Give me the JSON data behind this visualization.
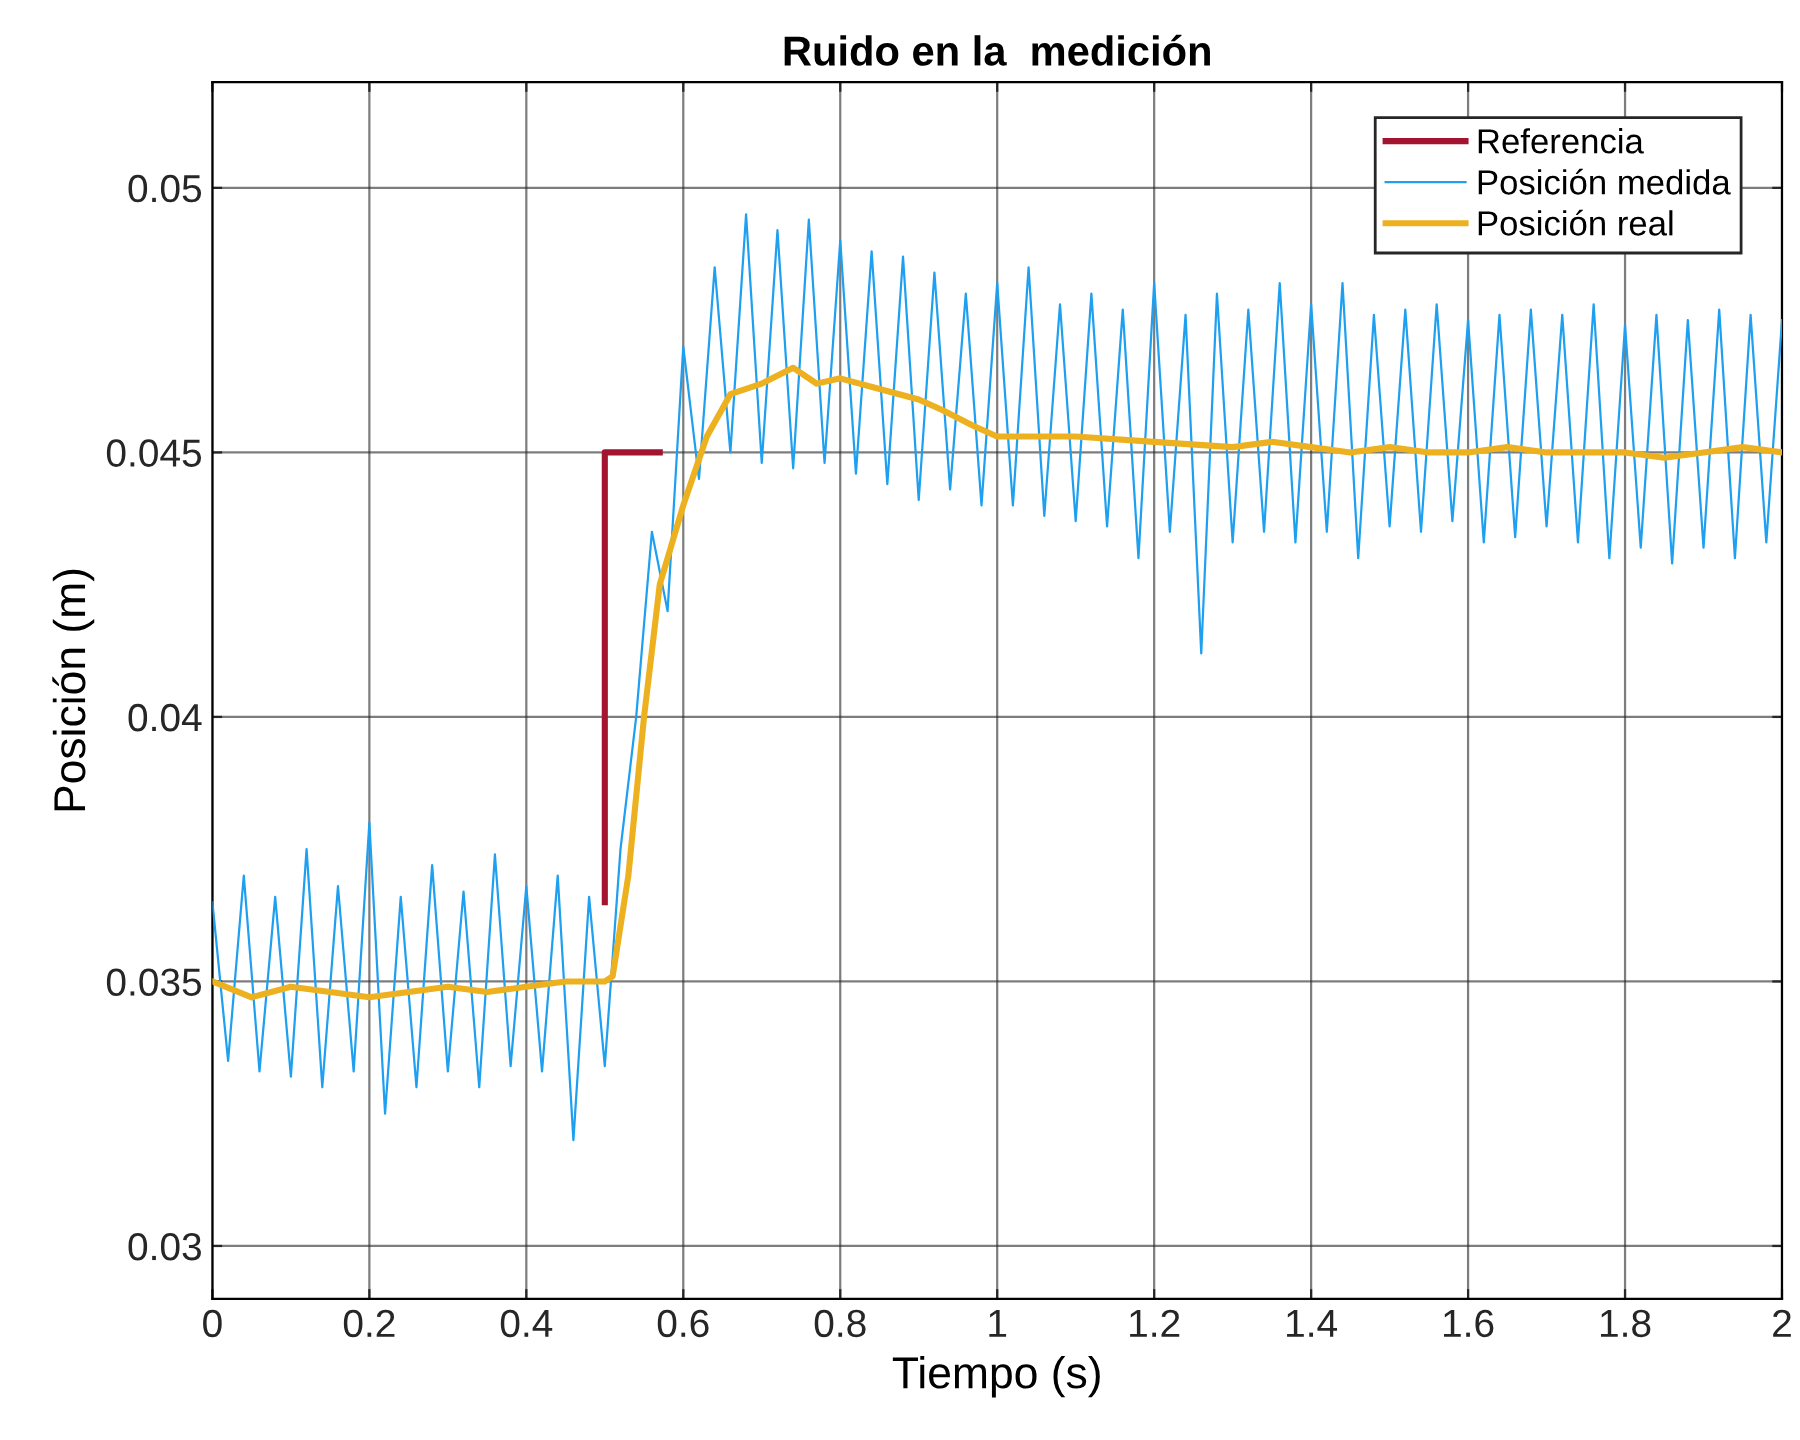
{
  "chart_data": {
    "type": "line",
    "title": "Ruido en la  medición",
    "xlabel": "Tiempo (s)",
    "ylabel": "Posición (m)",
    "xlim": [
      0,
      2
    ],
    "xticks": [
      0,
      0.2,
      0.4,
      0.6,
      0.8,
      1,
      1.2,
      1.4,
      1.6,
      1.8,
      2
    ],
    "ylim": [
      0.029,
      0.052
    ],
    "yticks": [
      0.03,
      0.035,
      0.04,
      0.045,
      0.05
    ],
    "grid": true,
    "legend": "top right",
    "line_style": "solid",
    "series": [
      {
        "name": "Referencia",
        "color": "#a2142f",
        "x": [
          0.5,
          0.5,
          0.57
        ],
        "values": [
          0.0365,
          0.045,
          0.045
        ]
      },
      {
        "name": "Posición medida",
        "color": "#1e9ff0",
        "x": [
          0,
          0.02,
          0.04,
          0.06,
          0.08,
          0.1,
          0.12,
          0.14,
          0.16,
          0.18,
          0.2,
          0.22,
          0.24,
          0.26,
          0.28,
          0.3,
          0.32,
          0.34,
          0.36,
          0.38,
          0.4,
          0.42,
          0.44,
          0.46,
          0.48,
          0.5,
          0.52,
          0.54,
          0.56,
          0.58,
          0.6,
          0.62,
          0.64,
          0.66,
          0.68,
          0.7,
          0.72,
          0.74,
          0.76,
          0.78,
          0.8,
          0.82,
          0.84,
          0.86,
          0.88,
          0.9,
          0.92,
          0.94,
          0.96,
          0.98,
          1,
          1.02,
          1.04,
          1.06,
          1.08,
          1.1,
          1.12,
          1.14,
          1.16,
          1.18,
          1.2,
          1.22,
          1.24,
          1.26,
          1.28,
          1.3,
          1.32,
          1.34,
          1.36,
          1.38,
          1.4,
          1.42,
          1.44,
          1.46,
          1.48,
          1.5,
          1.52,
          1.54,
          1.56,
          1.58,
          1.6,
          1.62,
          1.64,
          1.66,
          1.68,
          1.7,
          1.72,
          1.74,
          1.76,
          1.78,
          1.8,
          1.82,
          1.84,
          1.86,
          1.88,
          1.9,
          1.92,
          1.94,
          1.96,
          1.98,
          2
        ],
        "values": [
          0.0365,
          0.0335,
          0.037,
          0.0333,
          0.0366,
          0.0332,
          0.0375,
          0.033,
          0.0368,
          0.0333,
          0.038,
          0.0325,
          0.0366,
          0.033,
          0.0372,
          0.0333,
          0.0367,
          0.033,
          0.0374,
          0.0334,
          0.0368,
          0.0333,
          0.037,
          0.032,
          0.0366,
          0.0334,
          0.0375,
          0.04,
          0.0435,
          0.042,
          0.047,
          0.0445,
          0.0485,
          0.045,
          0.0495,
          0.0448,
          0.0492,
          0.0447,
          0.0494,
          0.0448,
          0.049,
          0.0446,
          0.0488,
          0.0444,
          0.0487,
          0.0441,
          0.0484,
          0.0443,
          0.048,
          0.044,
          0.0482,
          0.044,
          0.0485,
          0.0438,
          0.0478,
          0.0437,
          0.048,
          0.0436,
          0.0477,
          0.043,
          0.0482,
          0.0435,
          0.0476,
          0.0412,
          0.048,
          0.0433,
          0.0477,
          0.0435,
          0.0482,
          0.0433,
          0.0478,
          0.0435,
          0.0482,
          0.043,
          0.0476,
          0.0436,
          0.0477,
          0.0435,
          0.0478,
          0.0437,
          0.0475,
          0.0433,
          0.0476,
          0.0434,
          0.0477,
          0.0436,
          0.0476,
          0.0433,
          0.0478,
          0.043,
          0.0474,
          0.0432,
          0.0476,
          0.0429,
          0.0475,
          0.0432,
          0.0477,
          0.043,
          0.0476,
          0.0433,
          0.0475
        ]
      },
      {
        "name": "Posición real",
        "color": "#edb120",
        "x": [
          0,
          0.05,
          0.1,
          0.15,
          0.2,
          0.25,
          0.3,
          0.35,
          0.4,
          0.45,
          0.5,
          0.51,
          0.53,
          0.55,
          0.57,
          0.6,
          0.63,
          0.66,
          0.7,
          0.74,
          0.77,
          0.8,
          0.85,
          0.9,
          0.93,
          0.97,
          1,
          1.1,
          1.2,
          1.3,
          1.35,
          1.4,
          1.45,
          1.5,
          1.55,
          1.6,
          1.65,
          1.7,
          1.8,
          1.85,
          1.9,
          1.95,
          2
        ],
        "values": [
          0.035,
          0.0347,
          0.0349,
          0.0348,
          0.0347,
          0.0348,
          0.0349,
          0.0348,
          0.0349,
          0.035,
          0.035,
          0.0351,
          0.037,
          0.04,
          0.0425,
          0.044,
          0.0453,
          0.0461,
          0.0463,
          0.0466,
          0.0463,
          0.0464,
          0.0462,
          0.046,
          0.0458,
          0.0455,
          0.0453,
          0.0453,
          0.0452,
          0.0451,
          0.0452,
          0.0451,
          0.045,
          0.0451,
          0.045,
          0.045,
          0.0451,
          0.045,
          0.045,
          0.0449,
          0.045,
          0.0451,
          0.045
        ]
      }
    ]
  }
}
